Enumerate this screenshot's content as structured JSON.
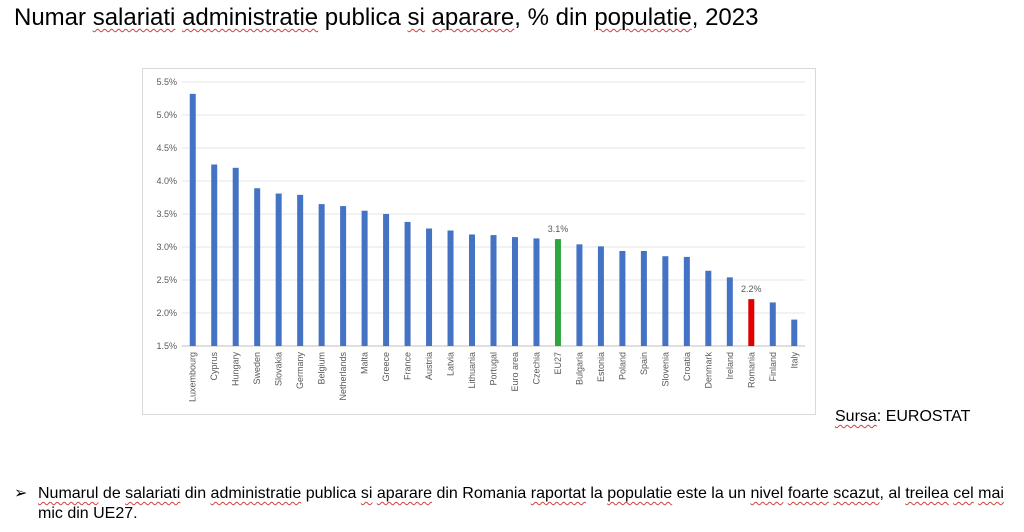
{
  "title": {
    "parts": [
      {
        "t": "Numar ",
        "s": false
      },
      {
        "t": "salariati",
        "s": true
      },
      {
        "t": " ",
        "s": false
      },
      {
        "t": "administratie",
        "s": true
      },
      {
        "t": " publica ",
        "s": false
      },
      {
        "t": "si",
        "s": true
      },
      {
        "t": " ",
        "s": false
      },
      {
        "t": "aparare",
        "s": true
      },
      {
        "t": ", % din ",
        "s": false
      },
      {
        "t": "populatie",
        "s": true
      },
      {
        "t": ", 2023",
        "s": false
      }
    ]
  },
  "source": {
    "label": "Sursa",
    "value": ": EUROSTAT"
  },
  "bullet": {
    "marker": "➢",
    "parts": [
      {
        "t": "Numarul",
        "s": true
      },
      {
        "t": " de ",
        "s": false
      },
      {
        "t": "salariati",
        "s": true
      },
      {
        "t": " din ",
        "s": false
      },
      {
        "t": "administratie",
        "s": true
      },
      {
        "t": " publica ",
        "s": false
      },
      {
        "t": "si",
        "s": true
      },
      {
        "t": " ",
        "s": false
      },
      {
        "t": "aparare",
        "s": true
      },
      {
        "t": " din Romania ",
        "s": false
      },
      {
        "t": "raportat",
        "s": true
      },
      {
        "t": " la ",
        "s": false
      },
      {
        "t": "populatie",
        "s": true
      },
      {
        "t": " este la un ",
        "s": false
      },
      {
        "t": "nivel",
        "s": true
      },
      {
        "t": " ",
        "s": false
      },
      {
        "t": "foarte",
        "s": true
      },
      {
        "t": " ",
        "s": false
      },
      {
        "t": "scazut",
        "s": true
      },
      {
        "t": ", al ",
        "s": false
      },
      {
        "t": "treilea",
        "s": true
      },
      {
        "t": " ",
        "s": false
      },
      {
        "t": "cel",
        "s": true
      },
      {
        "t": " ",
        "s": false
      },
      {
        "t": "mai",
        "s": true
      },
      {
        "t": " mic din UE27.",
        "s": false
      }
    ]
  },
  "chart_data": {
    "type": "bar",
    "categories": [
      "Luxembourg",
      "Cyprus",
      "Hungary",
      "Sweden",
      "Slovakia",
      "Germany",
      "Belgium",
      "Netherlands",
      "Malta",
      "Greece",
      "France",
      "Austria",
      "Latvia",
      "Lithuania",
      "Portugal",
      "Euro area",
      "Czechia",
      "EU27",
      "Bulgaria",
      "Estonia",
      "Poland",
      "Spain",
      "Slovenia",
      "Croatia",
      "Denmark",
      "Ireland",
      "Romania",
      "Finland",
      "Italy"
    ],
    "values": [
      5.32,
      4.25,
      4.2,
      3.89,
      3.81,
      3.79,
      3.65,
      3.62,
      3.55,
      3.5,
      3.38,
      3.28,
      3.25,
      3.19,
      3.18,
      3.15,
      3.13,
      3.12,
      3.04,
      3.01,
      2.94,
      2.94,
      2.86,
      2.85,
      2.64,
      2.54,
      2.21,
      2.16,
      1.9
    ],
    "bar_colors": {
      "default": "#4472c4",
      "EU27": "#2ea63e",
      "Romania": "#e00000"
    },
    "data_labels": [
      {
        "category": "EU27",
        "text": "3.1%"
      },
      {
        "category": "Romania",
        "text": "2.2%"
      }
    ],
    "y_ticks": [
      "1.5%",
      "2.0%",
      "2.5%",
      "3.0%",
      "3.5%",
      "4.0%",
      "4.5%",
      "5.0%",
      "5.5%"
    ],
    "ylim": [
      1.5,
      5.5
    ],
    "grid": true,
    "legend": "none"
  }
}
